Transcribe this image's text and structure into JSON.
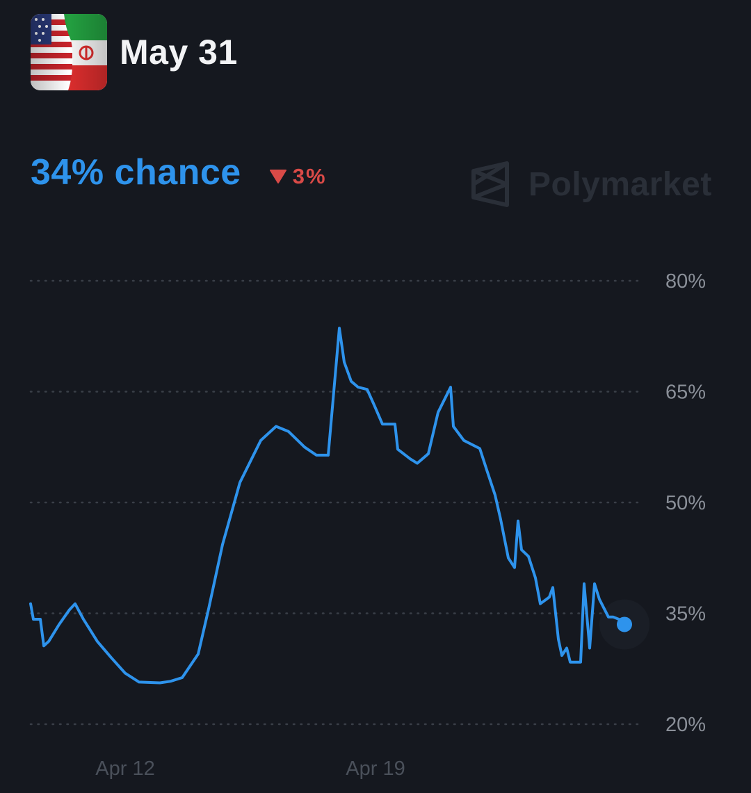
{
  "header": {
    "title": "May 31",
    "image_icon": "us-iran-flags-icon"
  },
  "summary": {
    "probability_label": "34% chance",
    "change_label": "3%",
    "change_direction": "down",
    "change_color": "#d94a47"
  },
  "watermark": {
    "text": "Polymarket",
    "icon": "polymarket-logo-icon"
  },
  "colors": {
    "background": "#15181f",
    "line": "#2e93ec",
    "gridline": "#3a3f48",
    "axis_text": "#8a8f98"
  },
  "chart_data": {
    "type": "line",
    "title": "",
    "xlabel": "",
    "ylabel": "",
    "x_tick_labels": [
      "Apr 12",
      "Apr 19"
    ],
    "y_ticks": [
      80,
      65,
      50,
      35,
      20
    ],
    "y_tick_labels": [
      "80%",
      "65%",
      "50%",
      "35%",
      "20%"
    ],
    "ylim": [
      20,
      80
    ],
    "grid": true,
    "last_value": 33.5,
    "series": [
      {
        "values": [
          36.3,
          34.2,
          34.2,
          30.6,
          31.2,
          33.5,
          35.5,
          36.3,
          34.2,
          31.2,
          29.0,
          26.9,
          25.7,
          25.6,
          25.8,
          26.3,
          29.5,
          35.6,
          44.3,
          52.7,
          58.4,
          60.3,
          59.6,
          57.5,
          56.4,
          56.4,
          56.4,
          73.6,
          69.0,
          66.4,
          65.6,
          65.3,
          63.2,
          60.6,
          60.6,
          57.2,
          55.9,
          55.3,
          56.6,
          62.2,
          65.6,
          60.3,
          58.4,
          57.3,
          54.4,
          51.0,
          47.7,
          42.5,
          41.2,
          47.5,
          43.6,
          42.7,
          39.8,
          36.3,
          37.2,
          38.5,
          31.5,
          29.3,
          30.3,
          28.4,
          28.4,
          28.4,
          39.0,
          30.3,
          39.0,
          36.9,
          34.5,
          34.5,
          34.2,
          33.5
        ]
      }
    ]
  }
}
